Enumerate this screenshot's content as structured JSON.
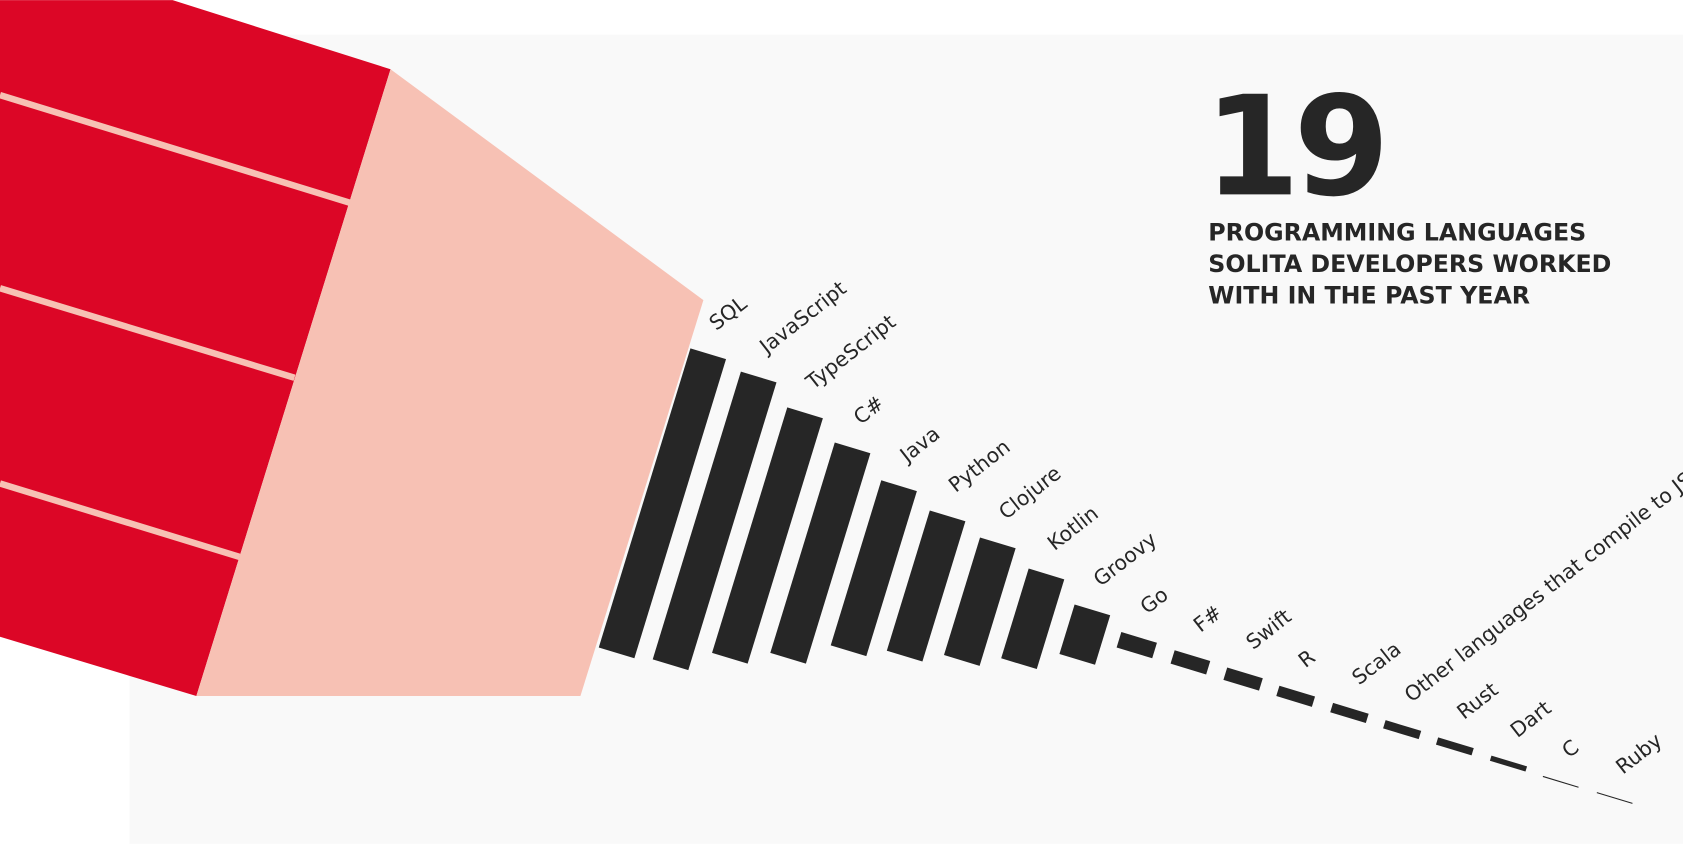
{
  "chart_data": {
    "type": "bar",
    "title": "19",
    "subtitle": [
      "PROGRAMMING LANGUAGES",
      "SOLITA DEVELOPERS WORKED",
      "WITH IN THE PAST YEAR"
    ],
    "categories": [
      "SQL",
      "JavaScript",
      "TypeScript",
      "C#",
      "Java",
      "Python",
      "Clojure",
      "Kotlin",
      "Groovy",
      "Go",
      "F#",
      "Swift",
      "R",
      "Scala",
      "Other languages that compile to JS",
      "Rust",
      "Dart",
      "C",
      "Ruby"
    ],
    "values": [
      290,
      279,
      238,
      204,
      160,
      136,
      114,
      87,
      48,
      15,
      13,
      12,
      10,
      9,
      8,
      7,
      5,
      1,
      1
    ],
    "color": "#262626"
  }
}
